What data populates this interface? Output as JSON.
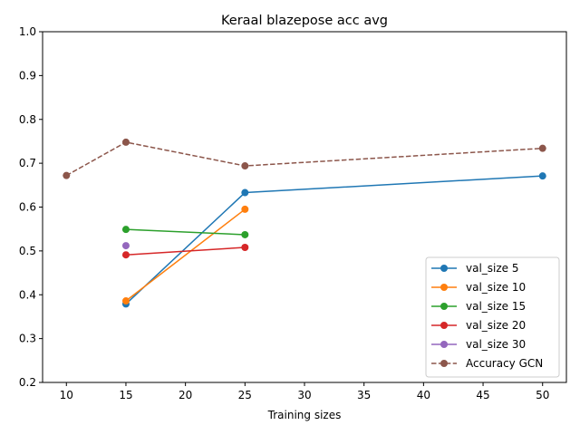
{
  "chart_data": {
    "type": "line",
    "title": "Keraal blazepose acc avg",
    "xlabel": "Training sizes",
    "ylabel": "",
    "xlim": [
      8.0,
      52.0
    ],
    "ylim": [
      0.2,
      1.0
    ],
    "xticks": [
      10,
      15,
      20,
      25,
      30,
      35,
      40,
      45,
      50
    ],
    "yticks": [
      0.2,
      0.3,
      0.4,
      0.5,
      0.6,
      0.7,
      0.8,
      0.9,
      1.0
    ],
    "ytick_labels": [
      "0.2",
      "0.3",
      "0.4",
      "0.5",
      "0.6",
      "0.7",
      "0.8",
      "0.9",
      "1.0"
    ],
    "legend_position": "lower-right",
    "series": [
      {
        "name": "val_size 5",
        "color": "#1f77b4",
        "dash": false,
        "x": [
          15,
          25,
          50
        ],
        "y": [
          0.379,
          0.633,
          0.671
        ]
      },
      {
        "name": "val_size 10",
        "color": "#ff7f0e",
        "dash": false,
        "x": [
          15,
          25
        ],
        "y": [
          0.386,
          0.595
        ]
      },
      {
        "name": "val_size 15",
        "color": "#2ca02c",
        "dash": false,
        "x": [
          15,
          25
        ],
        "y": [
          0.549,
          0.537
        ]
      },
      {
        "name": "val_size 20",
        "color": "#d62728",
        "dash": false,
        "x": [
          15,
          25
        ],
        "y": [
          0.491,
          0.508
        ]
      },
      {
        "name": "val_size 30",
        "color": "#9467bd",
        "dash": false,
        "x": [
          15
        ],
        "y": [
          0.512
        ]
      },
      {
        "name": "Accuracy GCN",
        "color": "#8c564b",
        "dash": true,
        "x": [
          10,
          15,
          25,
          50
        ],
        "y": [
          0.672,
          0.748,
          0.694,
          0.734
        ]
      }
    ]
  }
}
